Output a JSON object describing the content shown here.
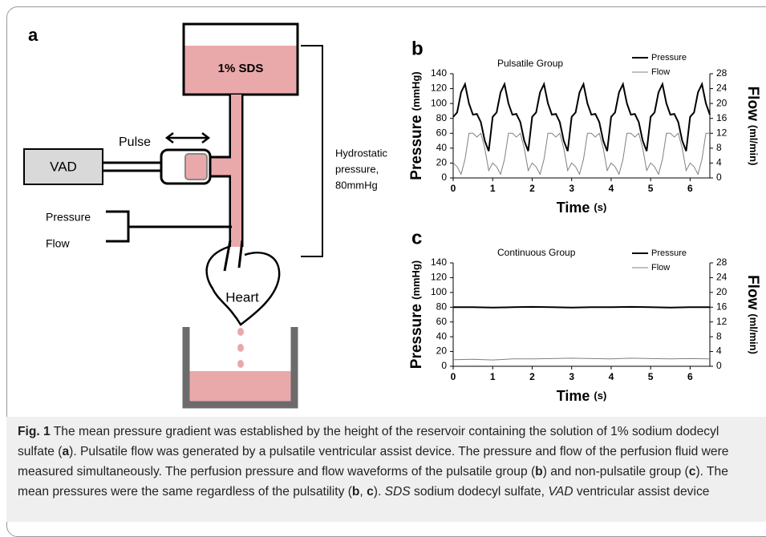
{
  "diagram": {
    "panel": "a",
    "reservoir": "1% SDS",
    "vad": "VAD",
    "pulse": "Pulse",
    "pressure": "Pressure",
    "flow": "Flow",
    "heart": "Heart",
    "hydrostatic": [
      "Hydrostatic",
      "pressure,",
      "80mmHg"
    ]
  },
  "chart_data": [
    {
      "type": "line",
      "label": "b",
      "title": "Pulsatile Group",
      "xlabel": "Time",
      "xlabel_unit": "(s)",
      "ylabel": "Pressure",
      "ylabel_unit": "(mmHg)",
      "y2label": "Flow",
      "y2label_unit": "(ml/min)",
      "x": [
        0,
        0.1,
        0.2,
        0.3,
        0.4,
        0.5,
        0.6,
        0.7,
        0.8,
        0.9,
        1,
        1.1,
        1.2,
        1.3,
        1.4,
        1.5,
        1.6,
        1.7,
        1.8,
        1.9,
        2,
        2.1,
        2.2,
        2.3,
        2.4,
        2.5,
        2.6,
        2.7,
        2.8,
        2.9,
        3,
        3.1,
        3.2,
        3.3,
        3.4,
        3.5,
        3.6,
        3.7,
        3.8,
        3.9,
        4,
        4.1,
        4.2,
        4.3,
        4.4,
        4.5,
        4.6,
        4.7,
        4.8,
        4.9,
        5,
        5.1,
        5.2,
        5.3,
        5.4,
        5.5,
        5.6,
        5.7,
        5.8,
        5.9,
        6,
        6.1,
        6.2,
        6.3,
        6.4,
        6.5
      ],
      "series": [
        {
          "name": "Pressure",
          "color": "#000000",
          "values": [
            82,
            88,
            115,
            126,
            100,
            85,
            86,
            75,
            50,
            36,
            82,
            88,
            115,
            126,
            100,
            85,
            86,
            75,
            50,
            36,
            82,
            88,
            115,
            126,
            100,
            85,
            86,
            75,
            50,
            36,
            82,
            88,
            115,
            126,
            100,
            85,
            86,
            75,
            50,
            36,
            82,
            88,
            115,
            126,
            100,
            85,
            86,
            75,
            50,
            36,
            82,
            88,
            115,
            126,
            100,
            85,
            86,
            75,
            50,
            36,
            82,
            88,
            115,
            126,
            100,
            85
          ]
        },
        {
          "name": "Flow",
          "color": "#808080",
          "axis": "y2",
          "values": [
            4,
            3,
            1,
            5,
            12,
            12,
            11,
            12,
            8,
            2,
            4,
            3,
            1,
            5,
            12,
            12,
            11,
            12,
            8,
            2,
            4,
            3,
            1,
            5,
            12,
            12,
            11,
            12,
            8,
            2,
            4,
            3,
            1,
            5,
            12,
            12,
            11,
            12,
            8,
            2,
            4,
            3,
            1,
            5,
            12,
            12,
            11,
            12,
            8,
            2,
            4,
            3,
            1,
            5,
            12,
            12,
            11,
            12,
            8,
            2,
            4,
            3,
            1,
            5,
            12,
            12
          ]
        }
      ],
      "xlim": [
        0,
        6.5
      ],
      "xticks": [
        0,
        1,
        2,
        3,
        4,
        5,
        6
      ],
      "ylim": [
        0,
        140
      ],
      "yticks": [
        0,
        20,
        40,
        60,
        80,
        100,
        120,
        140
      ],
      "y2lim": [
        0,
        28
      ],
      "y2ticks": [
        0,
        4,
        8,
        12,
        16,
        20,
        24,
        28
      ]
    },
    {
      "type": "line",
      "label": "c",
      "title": "Continuous Group",
      "xlabel": "Time",
      "xlabel_unit": "(s)",
      "ylabel": "Pressure",
      "ylabel_unit": "(mmHg)",
      "y2label": "Flow",
      "y2label_unit": "(ml/min)",
      "x": [
        0,
        0.5,
        1,
        1.5,
        2,
        2.5,
        3,
        3.5,
        4,
        4.5,
        5,
        5.5,
        6,
        6.5
      ],
      "series": [
        {
          "name": "Pressure",
          "color": "#000000",
          "values": [
            80,
            80,
            79.5,
            80,
            80.5,
            80,
            79.5,
            80,
            80,
            80.5,
            80,
            79.5,
            80,
            80
          ]
        },
        {
          "name": "Flow",
          "color": "#808080",
          "axis": "y2",
          "values": [
            1.8,
            1.9,
            1.7,
            2,
            2,
            2.1,
            2.2,
            2.1,
            2,
            2.2,
            2.1,
            2,
            2.1,
            2
          ]
        }
      ],
      "xlim": [
        0,
        6.5
      ],
      "xticks": [
        0,
        1,
        2,
        3,
        4,
        5,
        6
      ],
      "ylim": [
        0,
        140
      ],
      "yticks": [
        0,
        20,
        40,
        60,
        80,
        100,
        120,
        140
      ],
      "y2lim": [
        0,
        28
      ],
      "y2ticks": [
        0,
        4,
        8,
        12,
        16,
        20,
        24,
        28
      ]
    }
  ],
  "caption": {
    "runs": [
      "Fig. 1",
      " The mean pressure gradient was established by the height of the reservoir containing the solution of 1% sodium dodecyl sulfate (",
      "a",
      "). Pulsatile flow was generated by a pulsatile ventricular assist device. The pressure and flow of the perfusion fluid were measured simultaneously. The perfusion pressure and flow waveforms of the pulsatile group (",
      "b",
      ") and non-pulsatile group (",
      "c",
      "). The mean pressures were the same regardless of the pulsatility (",
      "b",
      ", ",
      "c",
      "). ",
      "SDS",
      " sodium dodecyl sulfate, ",
      "VAD",
      " ventricular assist device"
    ]
  }
}
